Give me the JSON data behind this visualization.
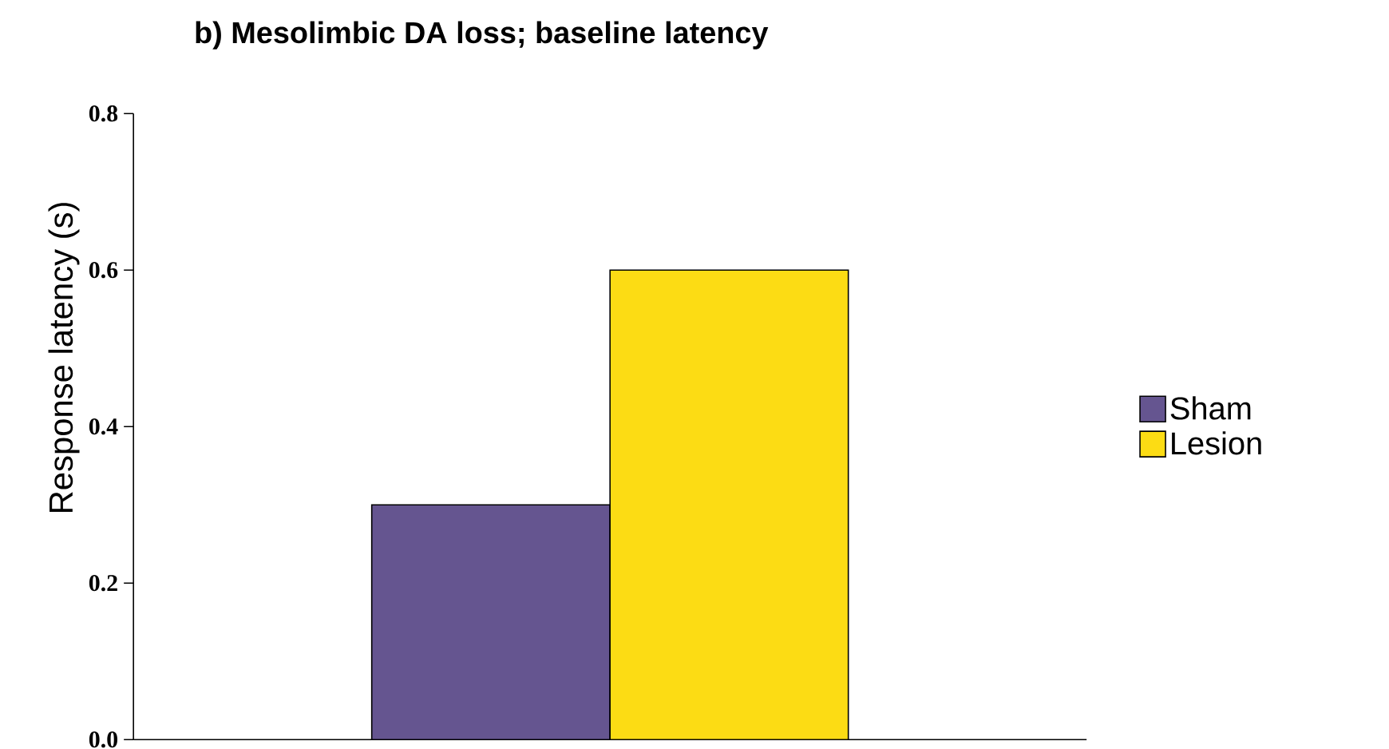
{
  "chart_data": {
    "type": "bar",
    "title": "b) Mesolimbic DA loss; baseline latency",
    "ylabel": "Response latency (s)",
    "categories": [
      null
    ],
    "series": [
      {
        "name": "Sham",
        "color": "#655590",
        "values": [
          0.3
        ]
      },
      {
        "name": "Lesion",
        "color": "#fcdc14",
        "values": [
          0.6
        ]
      }
    ],
    "ylim": [
      0,
      0.8
    ],
    "yticks": [
      {
        "value": 0,
        "label": "0.0"
      },
      {
        "value": 0.2,
        "label": "0.2"
      },
      {
        "value": 0.4,
        "label": "0.4"
      },
      {
        "value": 0.6,
        "label": "0.6"
      },
      {
        "value": 0.8,
        "label": "0.8"
      }
    ],
    "tick_labels": "y",
    "legend": "right"
  }
}
